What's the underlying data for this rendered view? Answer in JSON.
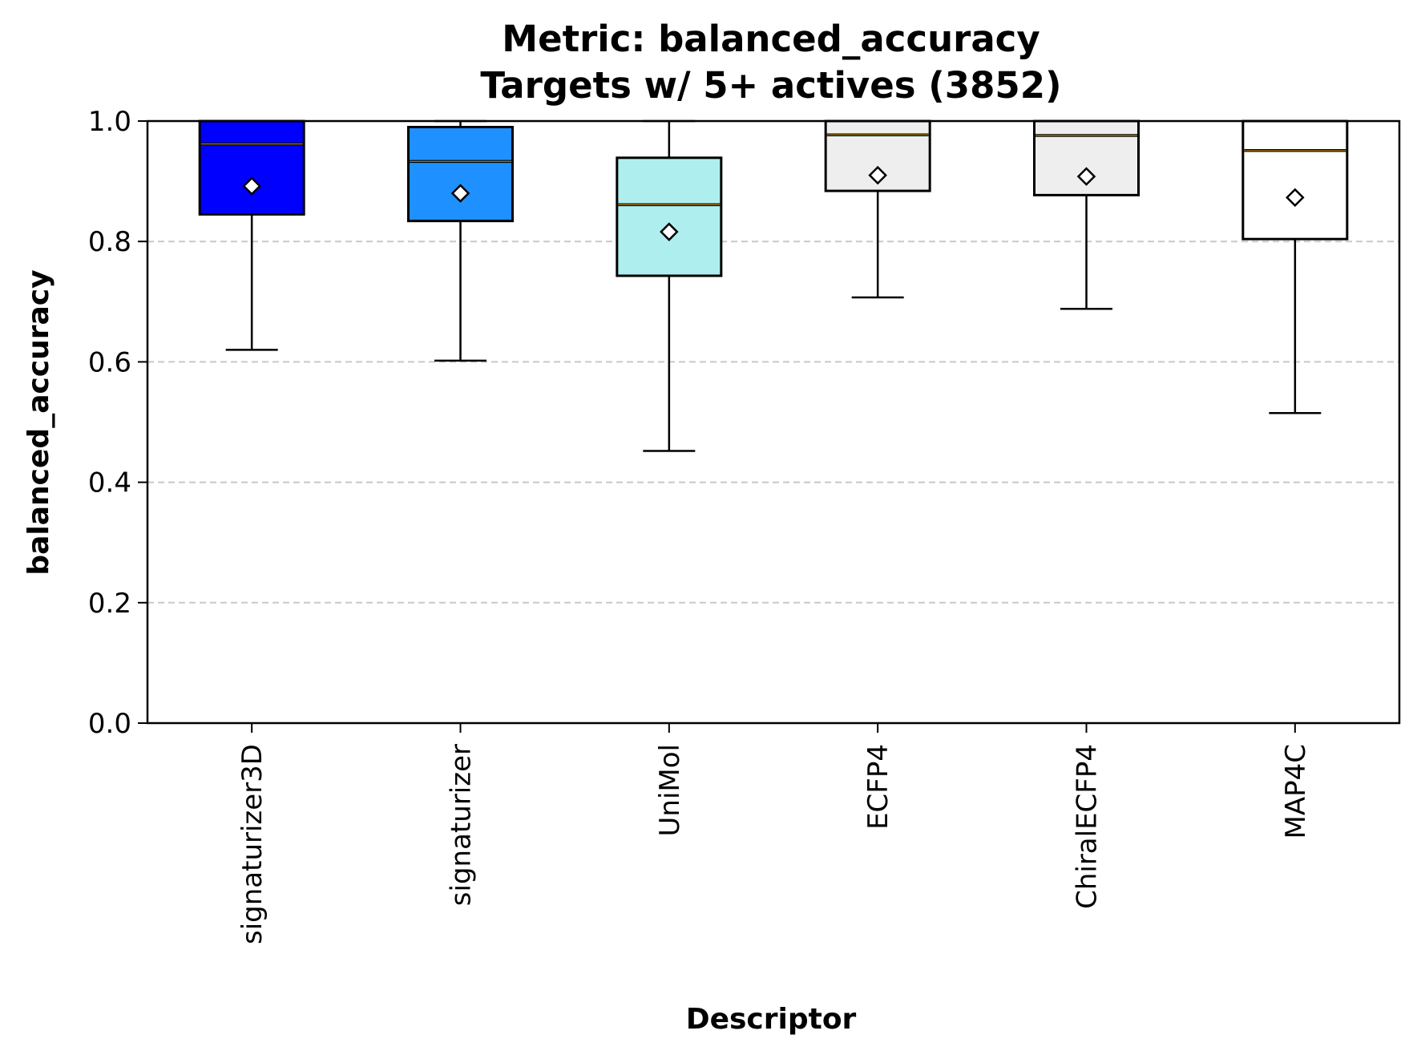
{
  "chart_data": {
    "type": "box",
    "title": "Metric: balanced_accuracy",
    "subtitle": "Targets w/ 5+ actives (3852)",
    "xlabel": "Descriptor",
    "ylabel": "balanced_accuracy",
    "ylim": [
      0.0,
      1.0
    ],
    "yticks": [
      "0.0",
      "0.2",
      "0.4",
      "0.6",
      "0.8",
      "1.0"
    ],
    "grid": "y-dashed",
    "categories": [
      "signaturizer3D",
      "signaturizer",
      "UniMol",
      "ECFP4",
      "ChiralECFP4",
      "MAP4C"
    ],
    "series": [
      {
        "category": "signaturizer3D",
        "whisker_low": 0.62,
        "q1": 0.845,
        "median": 0.962,
        "q3": 1.0,
        "whisker_high": 1.0,
        "mean": 0.892,
        "color": "#0000ff"
      },
      {
        "category": "signaturizer",
        "whisker_low": 0.602,
        "q1": 0.834,
        "median": 0.933,
        "q3": 0.99,
        "whisker_high": 1.0,
        "mean": 0.88,
        "color": "#1e90ff"
      },
      {
        "category": "UniMol",
        "whisker_low": 0.452,
        "q1": 0.743,
        "median": 0.861,
        "q3": 0.939,
        "whisker_high": 1.0,
        "mean": 0.816,
        "color": "#afeeee"
      },
      {
        "category": "ECFP4",
        "whisker_low": 0.707,
        "q1": 0.884,
        "median": 0.977,
        "q3": 1.0,
        "whisker_high": 1.0,
        "mean": 0.91,
        "color": "#eeeeee"
      },
      {
        "category": "ChiralECFP4",
        "whisker_low": 0.688,
        "q1": 0.877,
        "median": 0.976,
        "q3": 1.0,
        "whisker_high": 1.0,
        "mean": 0.908,
        "color": "#eeeeee"
      },
      {
        "category": "MAP4C",
        "whisker_low": 0.515,
        "q1": 0.804,
        "median": 0.951,
        "q3": 1.0,
        "whisker_high": 1.0,
        "mean": 0.873,
        "color": "#ffffff"
      }
    ],
    "median_line_color": "#b8860b",
    "mean_marker": "white-diamond"
  }
}
